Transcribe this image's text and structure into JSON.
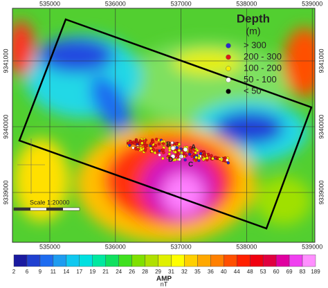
{
  "map": {
    "eastings": [
      535000,
      536000,
      537000,
      538000,
      539000
    ],
    "northings": [
      9341000,
      9340000,
      9339000
    ],
    "legend": {
      "title": "Depth",
      "unit": "(m)",
      "classes": [
        {
          "label": "> 300",
          "color": "#2a2acc"
        },
        {
          "label": "200 - 300",
          "color": "#e01818"
        },
        {
          "label": "100 - 200",
          "color": "#f4f000"
        },
        {
          "label": "50 - 100",
          "color": "#ffffff"
        },
        {
          "label": "< 50",
          "color": "#000000"
        }
      ]
    },
    "site_labels": [
      "A",
      "B",
      "C",
      "D"
    ],
    "scale": "Scale 1:20000"
  },
  "colorbar": {
    "title": "AMP",
    "unit": "nT",
    "labels": [
      2,
      6,
      9,
      11,
      14,
      17,
      19,
      21,
      24,
      26,
      28,
      29,
      31,
      32,
      35,
      36,
      40,
      44,
      48,
      53,
      60,
      69,
      83,
      189
    ]
  }
}
